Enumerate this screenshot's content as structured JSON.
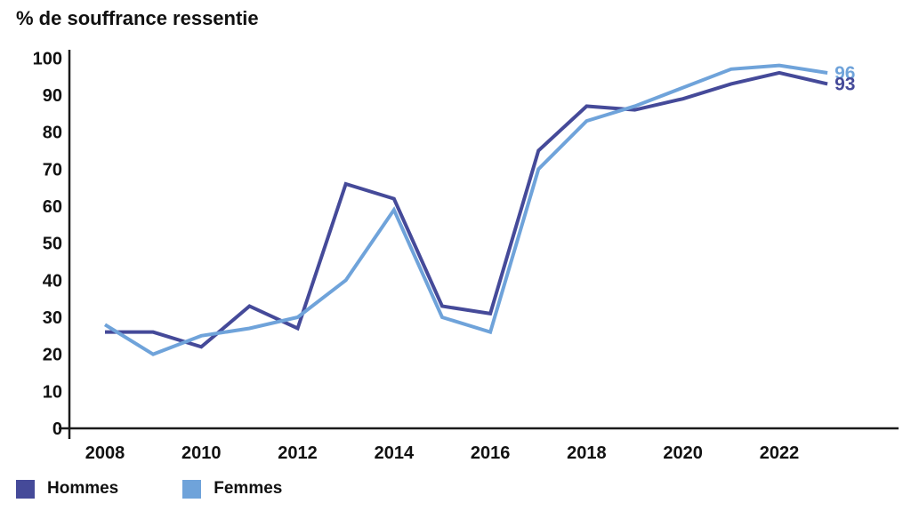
{
  "title": "% de souffrance ressentie",
  "colors": {
    "hommes": "#454A99",
    "femmes": "#6FA3DA",
    "axis": "#1a1a1a",
    "text": "#111111"
  },
  "legend": [
    {
      "label": "Hommes",
      "color_key": "hommes"
    },
    {
      "label": "Femmes",
      "color_key": "femmes"
    }
  ],
  "chart_data": {
    "type": "line",
    "title": "% de souffrance ressentie",
    "x": [
      2008,
      2009,
      2010,
      2011,
      2012,
      2013,
      2014,
      2015,
      2016,
      2017,
      2018,
      2019,
      2020,
      2021,
      2022,
      2023
    ],
    "series": [
      {
        "name": "Hommes",
        "color": "#454A99",
        "values": [
          26,
          26,
          22,
          33,
          27,
          66,
          62,
          33,
          31,
          75,
          87,
          86,
          89,
          93,
          96,
          93
        ]
      },
      {
        "name": "Femmes",
        "color": "#6FA3DA",
        "values": [
          28,
          20,
          25,
          27,
          30,
          40,
          59,
          30,
          26,
          70,
          83,
          87,
          92,
          97,
          98,
          96
        ]
      }
    ],
    "xlabel": "",
    "ylabel": "",
    "ylim": [
      0,
      100
    ],
    "y_ticks": [
      0,
      10,
      20,
      30,
      40,
      50,
      60,
      70,
      80,
      90,
      100
    ],
    "x_tick_labels": [
      2008,
      2010,
      2012,
      2014,
      2016,
      2018,
      2020,
      2022
    ],
    "grid": false,
    "legend_position": "bottom-left",
    "end_labels": [
      {
        "text": "96",
        "series": "Femmes"
      },
      {
        "text": "93",
        "series": "Hommes"
      }
    ]
  }
}
